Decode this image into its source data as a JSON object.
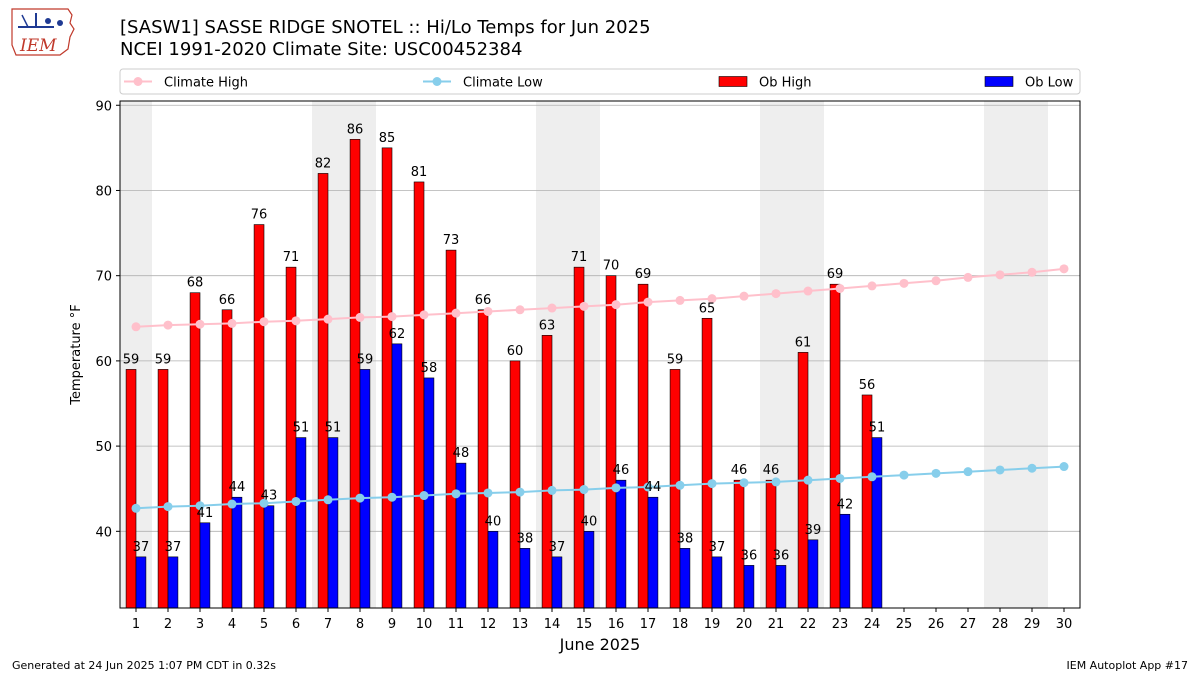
{
  "header": {
    "title_line1": "[SASW1] SASSE RIDGE SNOTEL :: Hi/Lo Temps for Jun 2025",
    "title_line2": "NCEI 1991-2020 Climate Site: USC00452384",
    "logo_text": "IEM"
  },
  "footer": {
    "left": "Generated at 24 Jun 2025 1:07 PM CDT in 0.32s",
    "right": "IEM Autoplot App #17"
  },
  "colors": {
    "ob_high": "#ff0000",
    "ob_low": "#0000ff",
    "climate_high": "#ffc0cb",
    "climate_low": "#87ceeb",
    "weekend_shade": "#eeeeee",
    "grid": "#b0b0b0"
  },
  "chart_data": {
    "type": "bar",
    "xlabel": "June 2025",
    "ylabel": "Temperature °F",
    "ylim": [
      31,
      90.5
    ],
    "yticks": [
      40,
      50,
      60,
      70,
      80,
      90
    ],
    "grid": "horizontal",
    "legend_position": "top",
    "weekend_days": [
      1,
      7,
      8,
      14,
      15,
      21,
      22,
      28,
      29
    ],
    "days": [
      1,
      2,
      3,
      4,
      5,
      6,
      7,
      8,
      9,
      10,
      11,
      12,
      13,
      14,
      15,
      16,
      17,
      18,
      19,
      20,
      21,
      22,
      23,
      24,
      25,
      26,
      27,
      28,
      29,
      30
    ],
    "series": [
      {
        "name": "Climate High",
        "kind": "line",
        "values": [
          64.0,
          64.2,
          64.3,
          64.4,
          64.6,
          64.7,
          64.9,
          65.1,
          65.2,
          65.4,
          65.6,
          65.8,
          66.0,
          66.2,
          66.4,
          66.6,
          66.9,
          67.1,
          67.3,
          67.6,
          67.9,
          68.2,
          68.5,
          68.8,
          69.1,
          69.4,
          69.8,
          70.1,
          70.4,
          70.8
        ]
      },
      {
        "name": "Climate Low",
        "kind": "line",
        "values": [
          42.7,
          42.9,
          43.0,
          43.2,
          43.3,
          43.5,
          43.7,
          43.9,
          44.0,
          44.2,
          44.4,
          44.5,
          44.6,
          44.8,
          44.9,
          45.1,
          45.2,
          45.4,
          45.6,
          45.7,
          45.8,
          46.0,
          46.2,
          46.4,
          46.6,
          46.8,
          47.0,
          47.2,
          47.4,
          47.6
        ]
      },
      {
        "name": "Ob High",
        "kind": "bar",
        "values": [
          59,
          59,
          68,
          66,
          76,
          71,
          82,
          86,
          85,
          81,
          73,
          66,
          60,
          63,
          71,
          70,
          69,
          59,
          65,
          46,
          46,
          61,
          69,
          56
        ]
      },
      {
        "name": "Ob Low",
        "kind": "bar",
        "values": [
          37,
          37,
          41,
          44,
          43,
          51,
          51,
          59,
          62,
          58,
          48,
          40,
          38,
          37,
          40,
          46,
          44,
          38,
          37,
          36,
          36,
          39,
          42,
          51
        ]
      }
    ]
  }
}
